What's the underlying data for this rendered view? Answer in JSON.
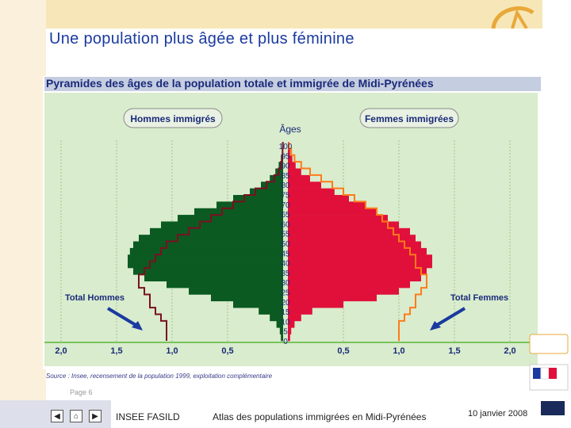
{
  "slide": {
    "title": "Une population plus âgée et plus féminine",
    "page_label": "Page 6",
    "footer_left": "INSEE FASILD",
    "footer_center": "Atlas des populations immigrées en Midi-Pyrénées",
    "footer_date": "10 janvier 2008",
    "source": "Source : Insee, recensement de la population 1999, exploitation complémentaire",
    "nav": {
      "prev": "◀",
      "home": "⌂",
      "next": "▶"
    }
  },
  "colors": {
    "title": "#1a3aa0",
    "plot_bg": "#d9eccd",
    "men_immigrants": "#0b5a22",
    "women_immigrants": "#e0103a",
    "men_total_line": "#7a1020",
    "women_total_line": "#ff7a1a",
    "arrow": "#1a3aa0"
  },
  "chart_data": {
    "type": "bar",
    "title": "Pyramides des âges de la population totale et immigrée de Midi-Pyrénées",
    "ylabel": "Âges",
    "y_ticks": [
      0,
      5,
      10,
      15,
      20,
      25,
      30,
      35,
      40,
      45,
      50,
      55,
      60,
      65,
      70,
      75,
      80,
      85,
      90,
      95,
      100
    ],
    "x_ticks_left": [
      "2,0",
      "1,5",
      "1,0",
      "0,5"
    ],
    "x_ticks_right": [
      "0,5",
      "1,0",
      "1,5",
      "2,0"
    ],
    "xlim": [
      0,
      2.0
    ],
    "ylim": [
      0,
      100
    ],
    "series": [
      {
        "name": "Hommes immigrés",
        "side": "left",
        "values": [
          0.02,
          0.03,
          0.06,
          0.12,
          0.22,
          0.45,
          0.65,
          0.85,
          1.05,
          1.25,
          1.35,
          1.4,
          1.4,
          1.38,
          1.35,
          1.3,
          1.2,
          1.1,
          0.95,
          0.8,
          0.6,
          0.45,
          0.3,
          0.2,
          0.12,
          0.07,
          0.04,
          0.02,
          0.01,
          0.005
        ]
      },
      {
        "name": "Femmes immigrées",
        "side": "right",
        "values": [
          0.02,
          0.03,
          0.06,
          0.12,
          0.22,
          0.5,
          0.8,
          1.0,
          1.1,
          1.2,
          1.25,
          1.3,
          1.3,
          1.25,
          1.2,
          1.15,
          1.1,
          1.0,
          0.9,
          0.8,
          0.7,
          0.55,
          0.42,
          0.3,
          0.2,
          0.12,
          0.07,
          0.04,
          0.02,
          0.01
        ]
      },
      {
        "name": "Total Hommes",
        "side": "left",
        "line": true,
        "values": [
          1.05,
          1.05,
          1.05,
          1.1,
          1.15,
          1.2,
          1.2,
          1.25,
          1.3,
          1.3,
          1.25,
          1.2,
          1.15,
          1.1,
          1.05,
          0.95,
          0.85,
          0.75,
          0.65,
          0.55,
          0.45,
          0.35,
          0.25,
          0.15,
          0.08,
          0.04,
          0.02,
          0.01,
          0.005,
          0.002
        ]
      },
      {
        "name": "Total Femmes",
        "side": "right",
        "line": true,
        "values": [
          1.0,
          1.0,
          1.0,
          1.05,
          1.1,
          1.15,
          1.15,
          1.2,
          1.25,
          1.25,
          1.2,
          1.15,
          1.15,
          1.1,
          1.05,
          1.0,
          0.95,
          0.9,
          0.85,
          0.8,
          0.7,
          0.6,
          0.5,
          0.4,
          0.3,
          0.2,
          0.12,
          0.06,
          0.03,
          0.01
        ]
      }
    ],
    "age_groups_step": 3.4,
    "legend": [
      "Hommes immigrés",
      "Femmes immigrées"
    ],
    "annotations": [
      "Total Hommes",
      "Total Femmes"
    ]
  }
}
